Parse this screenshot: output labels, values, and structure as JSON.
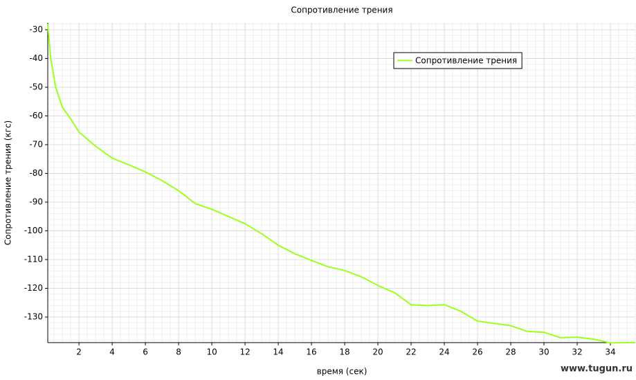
{
  "chart_data": {
    "type": "line",
    "title": "Сопротивление трения",
    "x_label": "время (сек)",
    "y_label": "Сопротивление трения (кгс)",
    "watermark": "www.tugun.ru",
    "legend": "top-right",
    "grid": true,
    "xlim": [
      0.12,
      35.5
    ],
    "ylim": [
      -138.9,
      -27.6
    ],
    "xticks": [
      2,
      4,
      6,
      8,
      10,
      12,
      14,
      16,
      18,
      20,
      22,
      24,
      26,
      28,
      30,
      32,
      34
    ],
    "yticks": [
      -30,
      -40,
      -50,
      -60,
      -70,
      -80,
      -90,
      -100,
      -110,
      -120,
      -130
    ],
    "x": [
      0.12,
      0.3,
      0.6,
      1,
      1.5,
      2,
      3,
      4,
      5,
      6,
      7,
      8,
      9,
      10,
      11,
      12,
      13,
      14,
      15,
      16,
      17,
      18,
      19,
      20,
      21,
      22,
      23,
      24,
      25,
      26,
      27,
      28,
      29,
      30,
      31,
      32,
      33,
      34,
      35,
      35.5
    ],
    "series": [
      {
        "name": "Сопротивление трения",
        "color": "#9eff1e",
        "values": [
          -28,
          -40,
          -50,
          -57,
          -61,
          -65.6,
          -70.5,
          -74.7,
          -77,
          -79.5,
          -82.5,
          -86,
          -90.5,
          -92.5,
          -95,
          -97.5,
          -101,
          -105,
          -108,
          -110.3,
          -112.5,
          -113.8,
          -116,
          -119,
          -121.5,
          -125.7,
          -126,
          -125.7,
          -128,
          -131.4,
          -132.2,
          -133,
          -135,
          -135.3,
          -137.2,
          -137,
          -137.7,
          -139,
          -138.9,
          -138.9
        ]
      }
    ]
  }
}
